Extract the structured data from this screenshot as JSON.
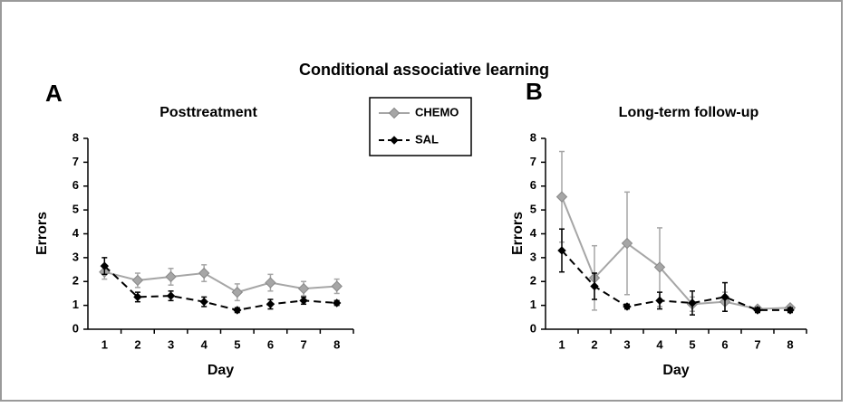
{
  "title": "Conditional associative learning",
  "chart_data": [
    {
      "type": "line",
      "panel_label": "A",
      "title": "Posttreatment",
      "xlabel": "Day",
      "ylabel": "Errors",
      "categories": [
        "1",
        "2",
        "3",
        "4",
        "5",
        "6",
        "7",
        "8"
      ],
      "ylim": [
        0,
        8
      ],
      "yticks": [
        0,
        1,
        2,
        3,
        4,
        5,
        6,
        7,
        8
      ],
      "series": [
        {
          "name": "CHEMO",
          "color": "#a6a6a6",
          "line_style": "solid",
          "values": [
            2.4,
            2.05,
            2.2,
            2.35,
            1.55,
            1.95,
            1.7,
            1.8
          ],
          "errors": [
            0.3,
            0.3,
            0.35,
            0.35,
            0.35,
            0.35,
            0.3,
            0.3
          ]
        },
        {
          "name": "SAL",
          "color": "#000000",
          "line_style": "dashed",
          "values": [
            2.65,
            1.35,
            1.4,
            1.15,
            0.8,
            1.05,
            1.2,
            1.1
          ],
          "errors": [
            0.35,
            0.2,
            0.2,
            0.2,
            0.1,
            0.2,
            0.15,
            0.1
          ]
        }
      ]
    },
    {
      "type": "line",
      "panel_label": "B",
      "title": "Long-term follow-up",
      "xlabel": "Day",
      "ylabel": "Errors",
      "categories": [
        "1",
        "2",
        "3",
        "4",
        "5",
        "6",
        "7",
        "8"
      ],
      "ylim": [
        0,
        8
      ],
      "yticks": [
        0,
        1,
        2,
        3,
        4,
        5,
        6,
        7,
        8
      ],
      "series": [
        {
          "name": "CHEMO",
          "color": "#a6a6a6",
          "line_style": "solid",
          "values": [
            5.55,
            2.15,
            3.6,
            2.6,
            1.05,
            1.15,
            0.85,
            0.9
          ],
          "errors": [
            1.9,
            1.35,
            2.15,
            1.65,
            0.3,
            0.4,
            0.1,
            0.1
          ]
        },
        {
          "name": "SAL",
          "color": "#000000",
          "line_style": "dashed",
          "values": [
            3.3,
            1.8,
            0.95,
            1.2,
            1.1,
            1.35,
            0.8,
            0.8
          ],
          "errors": [
            0.9,
            0.55,
            0.1,
            0.35,
            0.5,
            0.6,
            0.1,
            0.1
          ]
        }
      ]
    }
  ]
}
